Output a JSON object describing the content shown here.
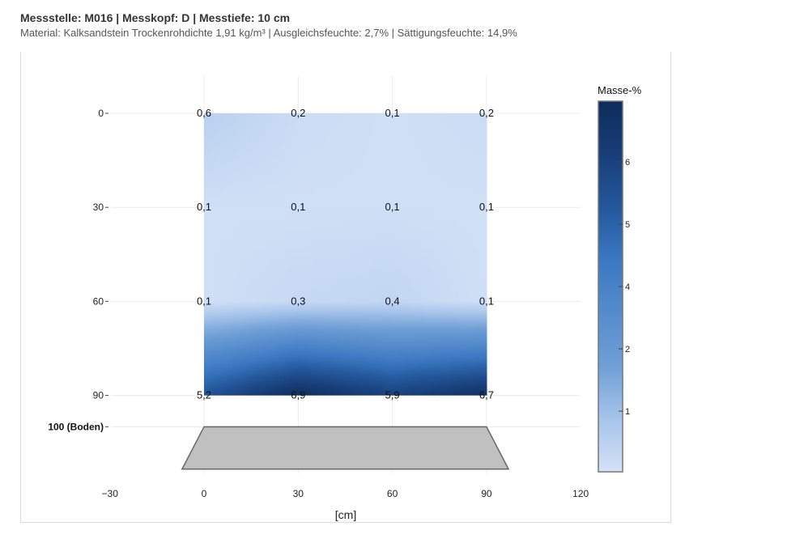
{
  "header": {
    "title": "Messstelle: M016 | Messkopf: D | Messtiefe: 10 cm",
    "subtitle": "Material: Kalksandstein Trockenrohdichte 1,91 kg/m³ | Ausgleichsfeuchte: 2,7% | Sättigungsfeuchte: 14,9%"
  },
  "chart_data": {
    "type": "heatmap",
    "x": [
      0,
      30,
      60,
      90
    ],
    "y": [
      0,
      30,
      60,
      90
    ],
    "z": [
      [
        0.6,
        0.2,
        0.1,
        0.2
      ],
      [
        0.1,
        0.1,
        0.1,
        0.1
      ],
      [
        0.1,
        0.3,
        0.4,
        0.1
      ],
      [
        5.2,
        6.9,
        5.9,
        6.7
      ]
    ],
    "z_labels": [
      [
        "0,6",
        "0,2",
        "0,1",
        "0,2"
      ],
      [
        "0,1",
        "0,1",
        "0,1",
        "0,1"
      ],
      [
        "0,1",
        "0,3",
        "0,4",
        "0,1"
      ],
      [
        "5,2",
        "6,9",
        "5,9",
        "6,7"
      ]
    ],
    "xlabel": "[cm]",
    "xlim": [
      -30,
      120
    ],
    "x_ticks": [
      "−30",
      "0",
      "30",
      "60",
      "90",
      "120"
    ],
    "y_ticks": [
      "0",
      "30",
      "60",
      "90"
    ],
    "y_extra_tick": "100 (Boden)",
    "y_reversed": true,
    "colorbar": {
      "title": "Masse-%",
      "ticks": [
        "1",
        "2",
        "4",
        "5",
        "6"
      ],
      "colors": [
        "#d4e2f7",
        "#6f9fd6",
        "#3b78c2",
        "#23579b",
        "#0d2c5c"
      ]
    },
    "floor_color": "#c0c0c0",
    "grid": true
  }
}
